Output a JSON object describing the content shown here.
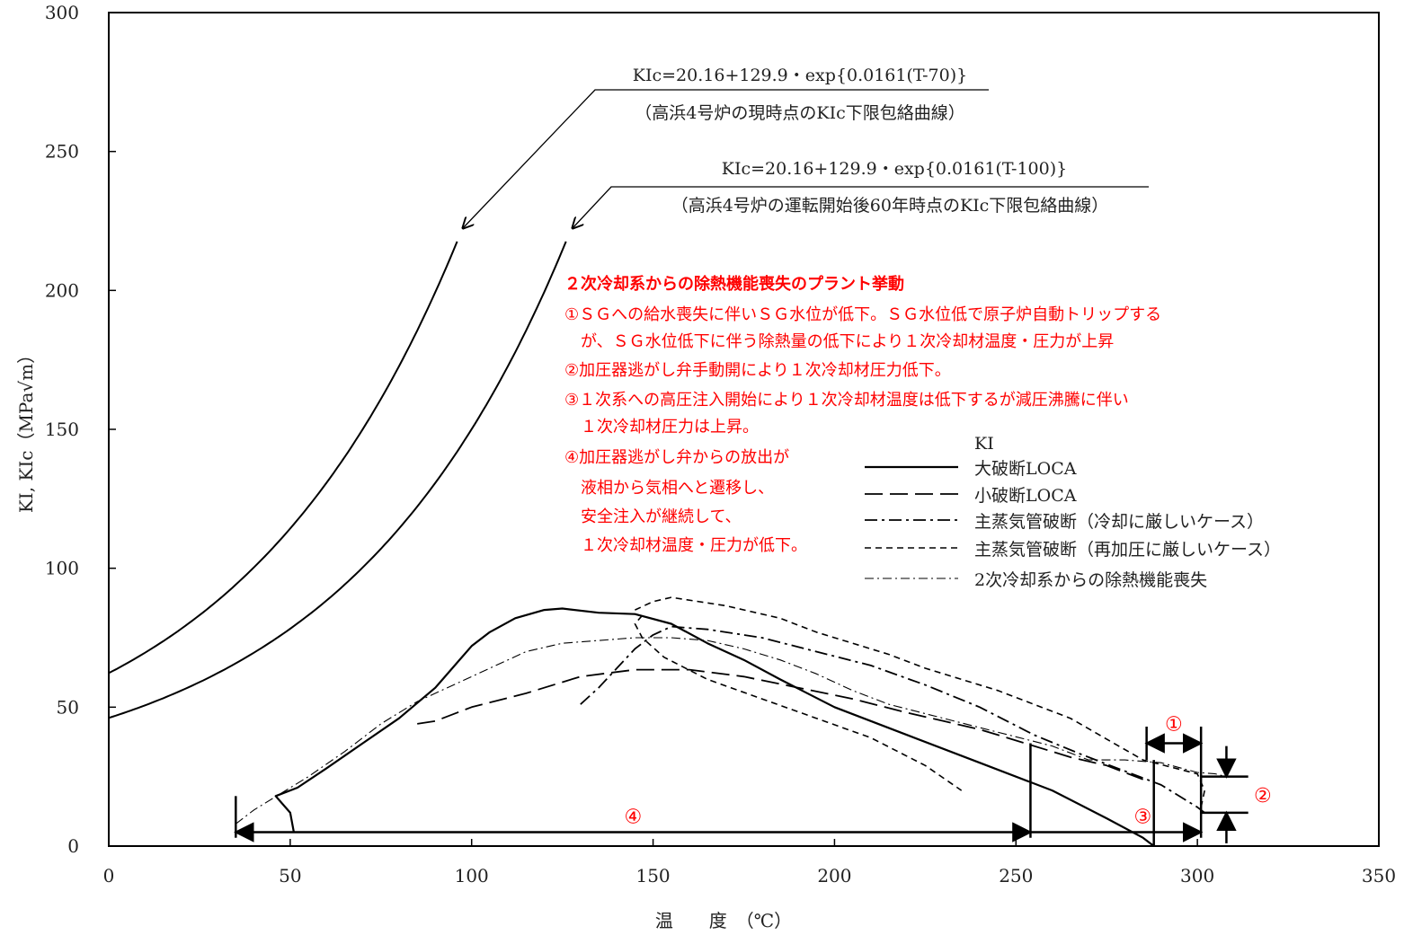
{
  "chart_data": {
    "type": "line",
    "xlabel": "温　　度　（℃）",
    "ylabel": "KI, KIc（MPa√m）",
    "xlim": [
      0,
      350
    ],
    "ylim": [
      0,
      300
    ],
    "x_ticks": [
      "0",
      "50",
      "100",
      "150",
      "200",
      "250",
      "300",
      "350"
    ],
    "y_ticks": [
      "0",
      "50",
      "100",
      "150",
      "200",
      "250",
      "300"
    ],
    "grid": false,
    "kic_curves": [
      {
        "formula": "KIc=20.16+129.9・exp{0.0161(T-70)}",
        "caption": "（高浜4号炉の現時点のKIc下限包絡曲線）",
        "shift": 70,
        "x_end": 96,
        "style": "solid"
      },
      {
        "formula": "KIc=20.16+129.9・exp{0.0161(T-100)}",
        "caption": "（高浜4号炉の運転開始後60年時点のKIc下限包絡曲線）",
        "shift": 100,
        "x_end": 126,
        "style": "solid"
      }
    ],
    "legend": {
      "placement": "center-right",
      "title": "KI",
      "entries": [
        {
          "name": "大破断LOCA",
          "style": "solid"
        },
        {
          "name": "小破断LOCA",
          "style": "long-dash"
        },
        {
          "name": "主蒸気管破断（冷却に厳しいケース）",
          "style": "dash-dot"
        },
        {
          "name": "主蒸気管破断（再加圧に厳しいケース）",
          "style": "short-dash"
        },
        {
          "name": "2次冷却系からの除熱機能喪失",
          "style": "thin-dash-dot"
        }
      ]
    },
    "series": [
      {
        "name": "大破断LOCA",
        "style": "solid",
        "points": [
          [
            51,
            5
          ],
          [
            50,
            12
          ],
          [
            48,
            15
          ],
          [
            46,
            18
          ],
          [
            52,
            21
          ],
          [
            60,
            28
          ],
          [
            70,
            37
          ],
          [
            80,
            46
          ],
          [
            90,
            57
          ],
          [
            100,
            72
          ],
          [
            105,
            77
          ],
          [
            112,
            82
          ],
          [
            120,
            85
          ],
          [
            125,
            85.5
          ],
          [
            135,
            84
          ],
          [
            145,
            83.5
          ],
          [
            155,
            80
          ],
          [
            165,
            73
          ],
          [
            175,
            67
          ],
          [
            185,
            60
          ],
          [
            200,
            50
          ],
          [
            220,
            40
          ],
          [
            240,
            30
          ],
          [
            260,
            20
          ],
          [
            275,
            10
          ],
          [
            285,
            3
          ],
          [
            288,
            0
          ]
        ]
      },
      {
        "name": "小破断LOCA",
        "style": "long-dash",
        "points": [
          [
            85,
            44
          ],
          [
            90,
            45
          ],
          [
            100,
            50
          ],
          [
            115,
            55
          ],
          [
            130,
            61
          ],
          [
            145,
            63.5
          ],
          [
            160,
            63.5
          ],
          [
            175,
            61
          ],
          [
            190,
            57
          ],
          [
            205,
            53
          ],
          [
            220,
            48
          ],
          [
            240,
            42
          ],
          [
            255,
            36
          ],
          [
            265,
            32
          ],
          [
            275,
            29
          ],
          [
            285,
            24
          ]
        ]
      },
      {
        "name": "主蒸気管破断（冷却に厳しいケース）",
        "style": "dash-dot",
        "points": [
          [
            130,
            51
          ],
          [
            135,
            57
          ],
          [
            140,
            64
          ],
          [
            145,
            71
          ],
          [
            150,
            76
          ],
          [
            155,
            79
          ],
          [
            165,
            78
          ],
          [
            180,
            75
          ],
          [
            195,
            70
          ],
          [
            210,
            65
          ],
          [
            225,
            58
          ],
          [
            240,
            50
          ],
          [
            255,
            40
          ],
          [
            268,
            33
          ],
          [
            280,
            27
          ],
          [
            290,
            22
          ],
          [
            300,
            14
          ],
          [
            302,
            12
          ]
        ]
      },
      {
        "name": "主蒸気管破断（再加圧に厳しいケース）",
        "style": "short-dash",
        "points": [
          [
            145,
            85
          ],
          [
            150,
            88
          ],
          [
            155,
            89.5
          ],
          [
            170,
            86.5
          ],
          [
            185,
            82
          ],
          [
            195,
            77
          ],
          [
            205,
            73
          ],
          [
            215,
            69
          ],
          [
            225,
            64
          ],
          [
            245,
            56
          ],
          [
            265,
            46
          ],
          [
            285,
            31
          ],
          [
            300,
            26
          ],
          [
            302,
            20
          ],
          [
            301,
            14
          ]
        ]
      },
      {
        "name": "2次冷却系からの除熱機能喪失",
        "style": "thin-dash-dot",
        "points": [
          [
            35,
            8
          ],
          [
            40,
            13
          ],
          [
            45,
            17
          ],
          [
            55,
            25
          ],
          [
            65,
            34
          ],
          [
            75,
            44
          ],
          [
            85,
            52
          ],
          [
            95,
            58
          ],
          [
            105,
            64
          ],
          [
            115,
            70
          ],
          [
            125,
            73
          ],
          [
            135,
            74
          ],
          [
            145,
            75
          ],
          [
            155,
            75
          ],
          [
            165,
            74
          ],
          [
            175,
            71
          ],
          [
            185,
            67
          ],
          [
            195,
            62
          ],
          [
            205,
            56
          ],
          [
            215,
            51
          ],
          [
            230,
            46
          ],
          [
            245,
            41
          ],
          [
            260,
            36
          ],
          [
            270,
            31
          ],
          [
            280,
            31
          ],
          [
            290,
            30
          ],
          [
            300,
            26.5
          ],
          [
            305,
            26
          ],
          [
            308,
            25
          ]
        ]
      },
      {
        "name": "",
        "style": "short-dash",
        "points": [
          [
            147,
            83
          ],
          [
            145,
            80
          ],
          [
            147,
            75
          ],
          [
            153,
            68
          ],
          [
            165,
            60
          ],
          [
            180,
            53
          ],
          [
            195,
            46
          ],
          [
            210,
            39
          ],
          [
            225,
            29
          ],
          [
            235,
            20
          ]
        ]
      }
    ],
    "annotation_title": "２次冷却系からの除熱機能喪失のプラント挙動",
    "annotation_lines": [
      "①ＳＧへの給水喪失に伴いＳＧ水位が低下。ＳＧ水位低で原子炉自動トリップする",
      "　が、ＳＧ水位低下に伴う除熱量の低下により１次冷却材温度・圧力が上昇",
      "②加圧器逃がし弁手動開により１次冷却材圧力低下。",
      "③１次系への高圧注入開始により１次冷却材温度は低下するが減圧沸騰に伴い",
      "　１次冷却材圧力は上昇。",
      "④加圧器逃がし弁からの放出が",
      "　液相から気相へと遷移し、",
      "　安全注入が継続して、",
      "　１次冷却材温度・圧力が低下。"
    ],
    "phase_markers": {
      "label_1": "①",
      "label_2": "②",
      "label_3": "③",
      "label_4": "④",
      "phase4_range": [
        35,
        254
      ],
      "phase3_range": [
        254,
        301
      ],
      "phase1_range": [
        286,
        301
      ],
      "phase2_range": [
        12,
        25
      ]
    }
  }
}
